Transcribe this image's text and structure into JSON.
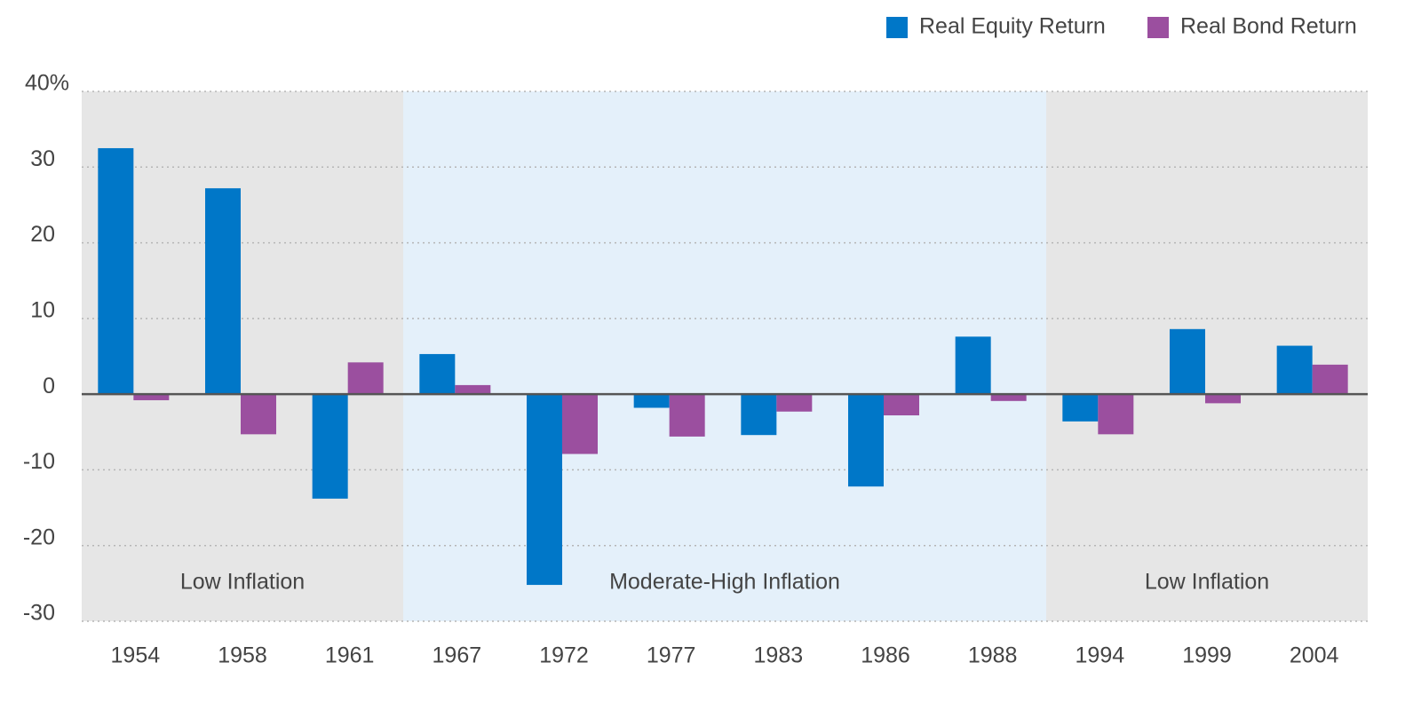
{
  "chart_data": {
    "type": "bar",
    "categories": [
      "1954",
      "1958",
      "1961",
      "1967",
      "1972",
      "1977",
      "1983",
      "1986",
      "1988",
      "1994",
      "1999",
      "2004"
    ],
    "series": [
      {
        "name": "Real Equity Return",
        "color": "#0077c8",
        "values": [
          32.5,
          27.2,
          -13.8,
          5.3,
          -25.2,
          -1.8,
          -5.4,
          -12.2,
          7.6,
          -3.6,
          8.6,
          6.4
        ]
      },
      {
        "name": "Real Bond Return",
        "color": "#9b4f9f",
        "values": [
          -0.8,
          -5.3,
          4.2,
          1.2,
          -7.9,
          -5.6,
          -2.3,
          -2.8,
          -0.9,
          -5.3,
          -1.2,
          3.9
        ]
      }
    ],
    "ylim": [
      -30,
      40
    ],
    "yticks": [
      {
        "value": 40,
        "label": "40%"
      },
      30,
      20,
      10,
      0,
      -10,
      -20,
      -30
    ],
    "grid": true,
    "legend": "top-right",
    "regions": [
      {
        "label": "Low Inflation",
        "from": "1954",
        "to": "1961",
        "color": "#e6e6e6"
      },
      {
        "label": "Moderate-High Inflation",
        "from": "1967",
        "to": "1988",
        "color": "#e4f0fa"
      },
      {
        "label": "Low Inflation",
        "from": "1994",
        "to": "2004",
        "color": "#e6e6e6"
      }
    ]
  }
}
